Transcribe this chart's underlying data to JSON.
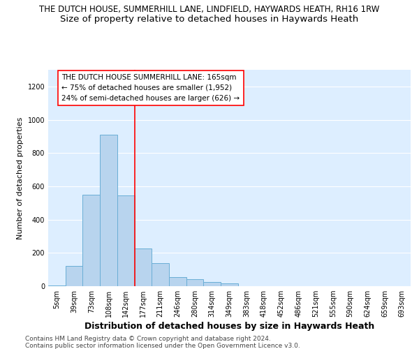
{
  "title": "THE DUTCH HOUSE, SUMMERHILL LANE, LINDFIELD, HAYWARDS HEATH, RH16 1RW",
  "subtitle": "Size of property relative to detached houses in Haywards Heath",
  "xlabel": "Distribution of detached houses by size in Haywards Heath",
  "ylabel": "Number of detached properties",
  "footer1": "Contains HM Land Registry data © Crown copyright and database right 2024.",
  "footer2": "Contains public sector information licensed under the Open Government Licence v3.0.",
  "bin_labels": [
    "5sqm",
    "39sqm",
    "73sqm",
    "108sqm",
    "142sqm",
    "177sqm",
    "211sqm",
    "246sqm",
    "280sqm",
    "314sqm",
    "349sqm",
    "383sqm",
    "418sqm",
    "452sqm",
    "486sqm",
    "521sqm",
    "555sqm",
    "590sqm",
    "624sqm",
    "659sqm",
    "693sqm"
  ],
  "bar_values": [
    5,
    120,
    550,
    910,
    545,
    225,
    140,
    55,
    40,
    25,
    15,
    0,
    0,
    0,
    0,
    0,
    0,
    0,
    0,
    0,
    0
  ],
  "bar_color": "#b8d4ee",
  "bar_edge_color": "#6aaed6",
  "red_line_x": 4.5,
  "annotation_line1": "THE DUTCH HOUSE SUMMERHILL LANE: 165sqm",
  "annotation_line2": "← 75% of detached houses are smaller (1,952)",
  "annotation_line3": "24% of semi-detached houses are larger (626) →",
  "ylim": [
    0,
    1300
  ],
  "yticks": [
    0,
    200,
    400,
    600,
    800,
    1000,
    1200
  ],
  "background_color": "#ddeeff",
  "grid_color": "#ffffff",
  "title_fontsize": 8.5,
  "subtitle_fontsize": 9.5,
  "xlabel_fontsize": 9,
  "ylabel_fontsize": 8,
  "tick_fontsize": 7,
  "annot_fontsize": 7.5,
  "footer_fontsize": 6.5
}
